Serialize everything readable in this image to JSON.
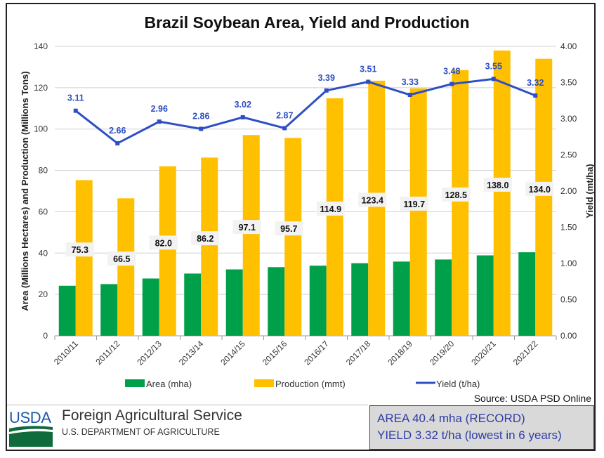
{
  "chart_data": {
    "type": "bar+line",
    "title": "Brazil Soybean Area, Yield and Production",
    "categories": [
      "2010/11",
      "2011/12",
      "2012/13",
      "2013/14",
      "2014/15",
      "2015/16",
      "2016/17",
      "2017/18",
      "2018/19",
      "2019/20",
      "2020/21",
      "2021/22"
    ],
    "series": [
      {
        "name": "Area (mha)",
        "type": "bar",
        "axis": "left",
        "color": "#00a04a",
        "values": [
          24.2,
          25.0,
          27.7,
          30.1,
          32.1,
          33.2,
          33.9,
          35.1,
          35.9,
          36.9,
          38.9,
          40.4
        ]
      },
      {
        "name": "Production (mmt)",
        "type": "bar",
        "axis": "left",
        "color": "#ffc000",
        "values": [
          75.3,
          66.5,
          82.0,
          86.2,
          97.1,
          95.7,
          114.9,
          123.4,
          119.7,
          128.5,
          138.0,
          134.0
        ],
        "data_labels": [
          "75.3",
          "66.5",
          "82.0",
          "86.2",
          "97.1",
          "95.7",
          "114.9",
          "123.4",
          "119.7",
          "128.5",
          "138.0",
          "134.0"
        ]
      },
      {
        "name": "Yield (t/ha)",
        "type": "line",
        "axis": "right",
        "color": "#2e4fc4",
        "values": [
          3.11,
          2.66,
          2.96,
          2.86,
          3.02,
          2.87,
          3.39,
          3.51,
          3.33,
          3.48,
          3.55,
          3.32
        ],
        "data_labels": [
          "3.11",
          "2.66",
          "2.96",
          "2.86",
          "3.02",
          "2.87",
          "3.39",
          "3.51",
          "3.33",
          "3.48",
          "3.55",
          "3.32"
        ]
      }
    ],
    "ylabel": "Area (Millions Hectares) and Production (Millions Tons)",
    "ylim": [
      0,
      140
    ],
    "yticks": [
      "0",
      "20",
      "40",
      "60",
      "80",
      "100",
      "120",
      "140"
    ],
    "y2label": "Yield (mt/ha)",
    "y2lim": [
      0,
      4
    ],
    "y2ticks": [
      "0.00",
      "0.50",
      "1.00",
      "1.50",
      "2.00",
      "2.50",
      "3.00",
      "3.50",
      "4.00"
    ],
    "grid": true,
    "legend": "bottom"
  },
  "source": "Source: USDA PSD Online",
  "footer": {
    "logo_text": "USDA",
    "agency": "Foreign Agricultural Service",
    "department": "U.S. DEPARTMENT OF AGRICULTURE",
    "summary_line1": "AREA  40.4 mha (RECORD)",
    "summary_line2": "YIELD  3.32 t/ha  (lowest in 6 years)"
  }
}
